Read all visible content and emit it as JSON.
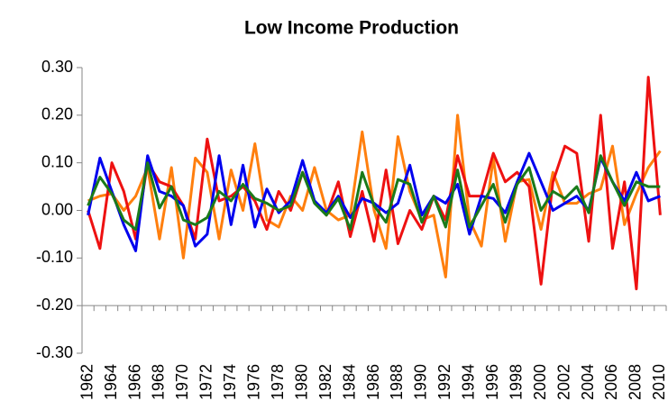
{
  "chart_data": {
    "type": "line",
    "title": "Low Income Production",
    "categories": [
      "1962",
      null,
      "1964",
      null,
      "1966",
      null,
      "1968",
      null,
      "1970",
      null,
      "1972",
      null,
      "1974",
      null,
      "1976",
      null,
      "1978",
      null,
      "1980",
      null,
      "1982",
      null,
      "1984",
      null,
      "1986",
      null,
      "1988",
      null,
      "1990",
      null,
      "1992",
      null,
      "1994",
      null,
      "1996",
      null,
      "1998",
      null,
      "2000",
      null,
      "2002",
      null,
      "2004",
      null,
      "2006",
      null,
      "2008",
      null,
      "2010"
    ],
    "series": [
      {
        "color": "#ff7f0e",
        "values": [
          0.02,
          0.03,
          0.035,
          0.0,
          0.03,
          0.09,
          -0.06,
          0.09,
          -0.1,
          0.11,
          0.08,
          -0.06,
          0.085,
          0.0,
          0.14,
          -0.02,
          -0.035,
          0.03,
          0.0,
          0.09,
          0.0,
          -0.02,
          -0.01,
          0.165,
          0.0,
          -0.08,
          0.155,
          0.04,
          -0.02,
          -0.01,
          -0.14,
          0.2,
          -0.02,
          -0.075,
          0.11,
          -0.065,
          0.06,
          0.065,
          -0.04,
          0.08,
          0.015,
          0.015,
          0.035,
          0.045,
          0.135,
          -0.03,
          0.035,
          0.09,
          0.125
        ]
      },
      {
        "color": "#ee1111",
        "values": [
          0.0,
          -0.08,
          0.1,
          0.04,
          -0.06,
          0.1,
          0.06,
          0.05,
          0.01,
          -0.06,
          0.15,
          0.02,
          0.03,
          0.05,
          0.02,
          -0.04,
          0.04,
          0.0,
          0.08,
          0.02,
          -0.01,
          0.06,
          -0.055,
          0.04,
          -0.065,
          0.085,
          -0.07,
          0.0,
          -0.04,
          0.03,
          -0.02,
          0.115,
          0.03,
          0.03,
          0.12,
          0.06,
          0.08,
          0.05,
          -0.155,
          0.06,
          0.135,
          0.12,
          -0.065,
          0.2,
          -0.08,
          0.06,
          -0.165,
          0.28,
          -0.01
        ]
      },
      {
        "color": "#0000ee",
        "values": [
          -0.01,
          0.11,
          0.04,
          -0.03,
          -0.085,
          0.115,
          0.04,
          0.03,
          0.01,
          -0.075,
          -0.05,
          0.115,
          -0.03,
          0.095,
          -0.035,
          0.045,
          -0.005,
          0.02,
          0.105,
          0.02,
          -0.005,
          0.03,
          -0.015,
          0.025,
          0.015,
          -0.005,
          0.015,
          0.095,
          -0.01,
          0.03,
          0.015,
          0.055,
          -0.05,
          0.03,
          0.025,
          -0.005,
          0.06,
          0.12,
          0.06,
          0.0,
          0.015,
          0.03,
          0.0,
          0.11,
          0.06,
          0.02,
          0.08,
          0.02,
          0.03
        ]
      },
      {
        "color": "#1a7a1a",
        "values": [
          0.01,
          0.07,
          0.035,
          -0.02,
          -0.04,
          0.1,
          0.005,
          0.05,
          -0.02,
          -0.03,
          -0.015,
          0.04,
          0.02,
          0.055,
          0.025,
          0.015,
          0.0,
          0.01,
          0.08,
          0.015,
          -0.01,
          0.025,
          -0.04,
          0.08,
          0.01,
          -0.025,
          0.065,
          0.055,
          -0.025,
          0.03,
          -0.035,
          0.085,
          -0.035,
          0.01,
          0.055,
          -0.025,
          0.055,
          0.09,
          0.0,
          0.04,
          0.025,
          0.05,
          -0.005,
          0.115,
          0.06,
          0.01,
          0.06,
          0.05,
          0.05
        ]
      }
    ],
    "ylim": [
      -0.3,
      0.3
    ],
    "yticks": [
      {
        "value": -0.3,
        "label": "-0.30"
      },
      {
        "value": -0.2,
        "label": "-0.20"
      },
      {
        "value": -0.1,
        "label": "-0.10"
      },
      {
        "value": 0,
        "label": "0.00"
      },
      {
        "value": 0.1,
        "label": "0.10"
      },
      {
        "value": 0.2,
        "label": "0.20"
      },
      {
        "value": 0.3,
        "label": "0.30"
      }
    ],
    "xaxis_crosses": -0.2,
    "grid": false
  }
}
